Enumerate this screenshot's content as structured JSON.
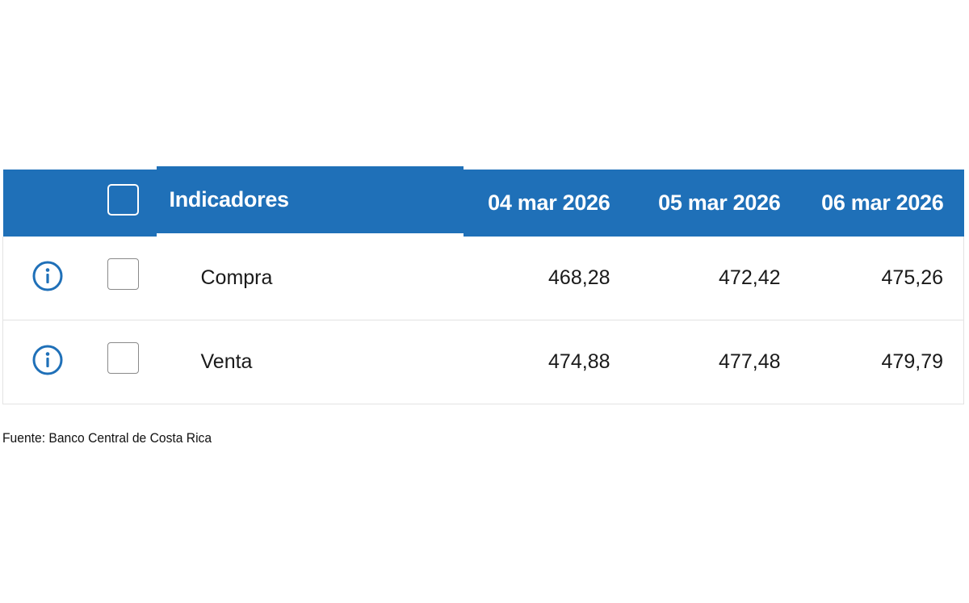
{
  "table": {
    "header": {
      "indicators_label": "Indicadores",
      "dates": [
        "04 mar 2026",
        "05 mar 2026",
        "06 mar 2026"
      ]
    },
    "rows": [
      {
        "label": "Compra",
        "values": [
          "468,28",
          "472,42",
          "475,26"
        ],
        "icon": "info-icon"
      },
      {
        "label": "Venta",
        "values": [
          "474,88",
          "477,48",
          "479,79"
        ],
        "icon": "info-icon"
      }
    ]
  },
  "source": "Fuente: Banco Central de Costa Rica",
  "colors": {
    "header_bg": "#1f70b8",
    "icon": "#1f70b8"
  }
}
